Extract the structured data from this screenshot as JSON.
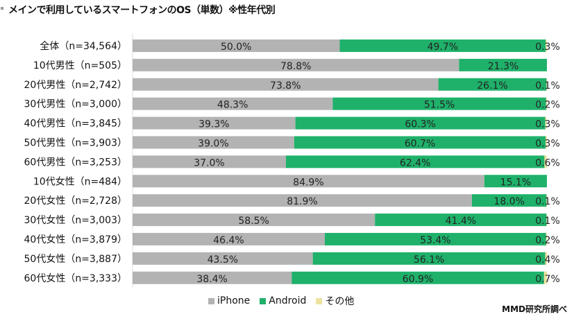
{
  "chart_data": {
    "type": "bar",
    "orientation": "horizontal-stacked-100",
    "title": "メインで利用しているスマートフォンのOS（単数）※性年代別",
    "categories": [
      "全体（n=34,564）",
      "10代男性（n=505）",
      "20代男性（n=2,742）",
      "30代男性（n=3,000）",
      "40代男性（n=3,845）",
      "50代男性（n=3,903）",
      "60代男性（n=3,253）",
      "10代女性（n=484）",
      "20代女性（n=2,728）",
      "30代女性（n=3,003）",
      "40代女性（n=3,879）",
      "50代女性（n=3,887）",
      "60代女性（n=3,333）"
    ],
    "series": [
      {
        "name": "iPhone",
        "color": "#b3b3b3",
        "values": [
          50.0,
          78.8,
          73.8,
          48.3,
          39.3,
          39.0,
          37.0,
          84.9,
          81.9,
          58.5,
          46.4,
          43.5,
          38.4
        ]
      },
      {
        "name": "Android",
        "color": "#1fb16a",
        "values": [
          49.7,
          21.3,
          26.1,
          51.5,
          60.3,
          60.7,
          62.4,
          15.1,
          18.0,
          41.4,
          53.4,
          56.1,
          60.9
        ]
      },
      {
        "name": "その他",
        "color": "#ede3a0",
        "values": [
          0.3,
          null,
          0.1,
          0.2,
          0.3,
          0.3,
          0.6,
          null,
          0.1,
          0.1,
          0.2,
          0.4,
          0.7
        ]
      }
    ],
    "xlim": [
      0,
      100
    ],
    "legend": "bottom",
    "source": "MMD研究所調べ"
  }
}
